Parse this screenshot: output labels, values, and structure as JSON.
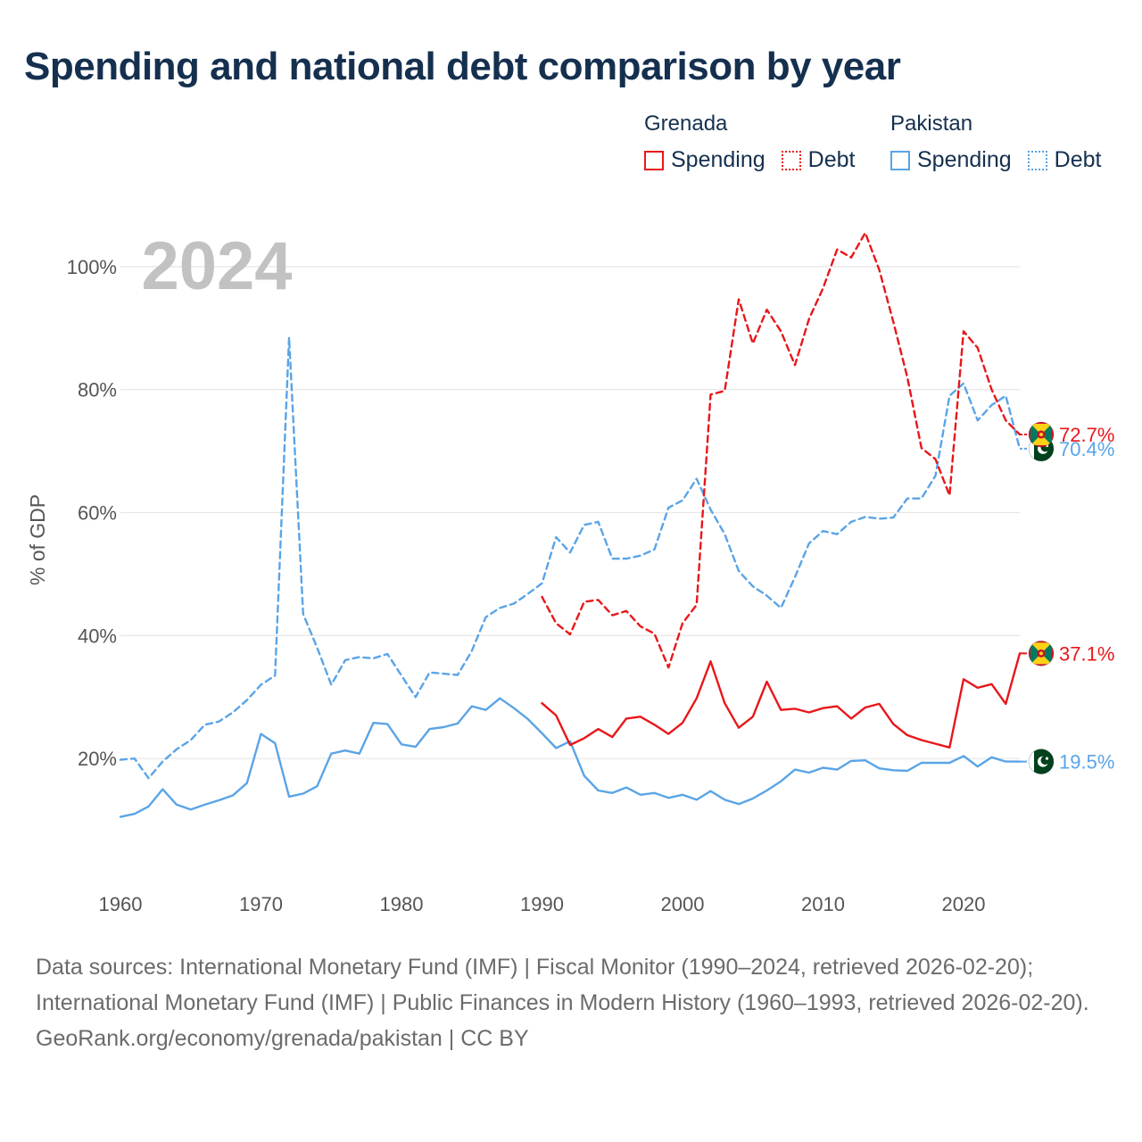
{
  "title": "Spending and national debt comparison by year",
  "legend": {
    "groups": [
      {
        "country": "Grenada",
        "color": "#e8171a",
        "items": [
          {
            "label": "Spending",
            "style": "solid"
          },
          {
            "label": "Debt",
            "style": "dotted"
          }
        ]
      },
      {
        "country": "Pakistan",
        "color": "#5aa4e6",
        "items": [
          {
            "label": "Spending",
            "style": "solid"
          },
          {
            "label": "Debt",
            "style": "dotted"
          }
        ]
      }
    ]
  },
  "chart_data": {
    "type": "line",
    "year_label": "2024",
    "ylabel": "% of GDP",
    "xlim": [
      1960,
      2024
    ],
    "ylim": [
      0,
      110
    ],
    "xticks": [
      1960,
      1970,
      1980,
      1990,
      2000,
      2010,
      2020
    ],
    "yticks": [
      20,
      40,
      60,
      80,
      100
    ],
    "ytick_labels": [
      "20%",
      "40%",
      "60%",
      "80%",
      "100%"
    ],
    "series": [
      {
        "name": "Pakistan Debt",
        "country": "Pakistan",
        "kind": "debt",
        "color": "#5aa4e6",
        "dashed": true,
        "end_label": "70.4%",
        "end_value": 70.4,
        "flag": "pakistan-flag",
        "points": [
          [
            1960,
            19.8
          ],
          [
            1961,
            20.0
          ],
          [
            1962,
            16.8
          ],
          [
            1963,
            19.5
          ],
          [
            1964,
            21.5
          ],
          [
            1965,
            23.0
          ],
          [
            1966,
            25.5
          ],
          [
            1967,
            26.0
          ],
          [
            1968,
            27.5
          ],
          [
            1969,
            29.5
          ],
          [
            1970,
            32.0
          ],
          [
            1971,
            33.5
          ],
          [
            1972,
            88.5
          ],
          [
            1973,
            43.5
          ],
          [
            1974,
            38.0
          ],
          [
            1975,
            32.0
          ],
          [
            1976,
            36.0
          ],
          [
            1977,
            36.5
          ],
          [
            1978,
            36.3
          ],
          [
            1979,
            37.0
          ],
          [
            1980,
            33.5
          ],
          [
            1981,
            30.0
          ],
          [
            1982,
            34.0
          ],
          [
            1983,
            33.8
          ],
          [
            1984,
            33.6
          ],
          [
            1985,
            37.5
          ],
          [
            1986,
            43.0
          ],
          [
            1987,
            44.5
          ],
          [
            1988,
            45.2
          ],
          [
            1989,
            46.8
          ],
          [
            1990,
            48.5
          ],
          [
            1991,
            56.0
          ],
          [
            1992,
            53.5
          ],
          [
            1993,
            58.0
          ],
          [
            1994,
            58.5
          ],
          [
            1995,
            52.5
          ],
          [
            1996,
            52.5
          ],
          [
            1997,
            53.0
          ],
          [
            1998,
            54.0
          ],
          [
            1999,
            60.8
          ],
          [
            2000,
            62.0
          ],
          [
            2001,
            65.5
          ],
          [
            2002,
            60.5
          ],
          [
            2003,
            56.5
          ],
          [
            2004,
            50.5
          ],
          [
            2005,
            48.0
          ],
          [
            2006,
            46.5
          ],
          [
            2007,
            44.5
          ],
          [
            2008,
            49.5
          ],
          [
            2009,
            55.0
          ],
          [
            2010,
            57.0
          ],
          [
            2011,
            56.5
          ],
          [
            2012,
            58.5
          ],
          [
            2013,
            59.3
          ],
          [
            2014,
            59.0
          ],
          [
            2015,
            59.2
          ],
          [
            2016,
            62.3
          ],
          [
            2017,
            62.3
          ],
          [
            2018,
            66.0
          ],
          [
            2019,
            79.0
          ],
          [
            2020,
            81.0
          ],
          [
            2021,
            75.0
          ],
          [
            2022,
            77.5
          ],
          [
            2023,
            79.0
          ],
          [
            2024,
            70.4
          ]
        ]
      },
      {
        "name": "Pakistan Spending",
        "country": "Pakistan",
        "kind": "spending",
        "color": "#5aa4e6",
        "dashed": false,
        "end_label": "19.5%",
        "end_value": 19.5,
        "flag": "pakistan-flag",
        "points": [
          [
            1960,
            10.5
          ],
          [
            1961,
            11.0
          ],
          [
            1962,
            12.2
          ],
          [
            1963,
            15.0
          ],
          [
            1964,
            12.5
          ],
          [
            1965,
            11.7
          ],
          [
            1966,
            12.5
          ],
          [
            1967,
            13.2
          ],
          [
            1968,
            14.0
          ],
          [
            1969,
            16.0
          ],
          [
            1970,
            24.0
          ],
          [
            1971,
            22.5
          ],
          [
            1972,
            13.8
          ],
          [
            1973,
            14.3
          ],
          [
            1974,
            15.5
          ],
          [
            1975,
            20.8
          ],
          [
            1976,
            21.3
          ],
          [
            1977,
            20.8
          ],
          [
            1978,
            25.8
          ],
          [
            1979,
            25.6
          ],
          [
            1980,
            22.3
          ],
          [
            1981,
            21.9
          ],
          [
            1982,
            24.8
          ],
          [
            1983,
            25.1
          ],
          [
            1984,
            25.7
          ],
          [
            1985,
            28.5
          ],
          [
            1986,
            27.9
          ],
          [
            1987,
            29.8
          ],
          [
            1988,
            28.2
          ],
          [
            1989,
            26.4
          ],
          [
            1990,
            24.1
          ],
          [
            1991,
            21.7
          ],
          [
            1992,
            22.8
          ],
          [
            1993,
            17.2
          ],
          [
            1994,
            14.8
          ],
          [
            1995,
            14.4
          ],
          [
            1996,
            15.3
          ],
          [
            1997,
            14.1
          ],
          [
            1998,
            14.4
          ],
          [
            1999,
            13.6
          ],
          [
            2000,
            14.1
          ],
          [
            2001,
            13.3
          ],
          [
            2002,
            14.7
          ],
          [
            2003,
            13.3
          ],
          [
            2004,
            12.6
          ],
          [
            2005,
            13.5
          ],
          [
            2006,
            14.8
          ],
          [
            2007,
            16.3
          ],
          [
            2008,
            18.2
          ],
          [
            2009,
            17.7
          ],
          [
            2010,
            18.5
          ],
          [
            2011,
            18.2
          ],
          [
            2012,
            19.6
          ],
          [
            2013,
            19.7
          ],
          [
            2014,
            18.4
          ],
          [
            2015,
            18.1
          ],
          [
            2016,
            18.0
          ],
          [
            2017,
            19.3
          ],
          [
            2018,
            19.3
          ],
          [
            2019,
            19.3
          ],
          [
            2020,
            20.4
          ],
          [
            2021,
            18.7
          ],
          [
            2022,
            20.2
          ],
          [
            2023,
            19.5
          ],
          [
            2024,
            19.5
          ]
        ]
      },
      {
        "name": "Grenada Debt",
        "country": "Grenada",
        "kind": "debt",
        "color": "#e8171a",
        "dashed": true,
        "end_label": "72.7%",
        "end_value": 72.7,
        "flag": "grenada-flag",
        "points": [
          [
            1990,
            46.3
          ],
          [
            1991,
            42.0
          ],
          [
            1992,
            40.2
          ],
          [
            1993,
            45.5
          ],
          [
            1994,
            45.8
          ],
          [
            1995,
            43.3
          ],
          [
            1996,
            44.0
          ],
          [
            1997,
            41.5
          ],
          [
            1998,
            40.3
          ],
          [
            1999,
            34.8
          ],
          [
            2000,
            42.0
          ],
          [
            2001,
            45.0
          ],
          [
            2002,
            79.2
          ],
          [
            2003,
            79.8
          ],
          [
            2004,
            94.7
          ],
          [
            2005,
            87.5
          ],
          [
            2006,
            93.0
          ],
          [
            2007,
            89.5
          ],
          [
            2008,
            84.0
          ],
          [
            2009,
            91.5
          ],
          [
            2010,
            96.5
          ],
          [
            2011,
            102.8
          ],
          [
            2012,
            101.5
          ],
          [
            2013,
            105.5
          ],
          [
            2014,
            99.5
          ],
          [
            2015,
            91.0
          ],
          [
            2016,
            82.0
          ],
          [
            2017,
            70.5
          ],
          [
            2018,
            68.7
          ],
          [
            2019,
            62.8
          ],
          [
            2020,
            89.5
          ],
          [
            2021,
            86.8
          ],
          [
            2022,
            80.0
          ],
          [
            2023,
            75.0
          ],
          [
            2024,
            72.7
          ]
        ]
      },
      {
        "name": "Grenada Spending",
        "country": "Grenada",
        "kind": "spending",
        "color": "#e8171a",
        "dashed": false,
        "end_label": "37.1%",
        "end_value": 37.1,
        "flag": "grenada-flag",
        "points": [
          [
            1990,
            29.0
          ],
          [
            1991,
            27.0
          ],
          [
            1992,
            22.2
          ],
          [
            1993,
            23.3
          ],
          [
            1994,
            24.8
          ],
          [
            1995,
            23.5
          ],
          [
            1996,
            26.5
          ],
          [
            1997,
            26.8
          ],
          [
            1998,
            25.5
          ],
          [
            1999,
            24.0
          ],
          [
            2000,
            25.8
          ],
          [
            2001,
            29.8
          ],
          [
            2002,
            35.8
          ],
          [
            2003,
            29.0
          ],
          [
            2004,
            25.0
          ],
          [
            2005,
            26.8
          ],
          [
            2006,
            32.5
          ],
          [
            2007,
            27.9
          ],
          [
            2008,
            28.1
          ],
          [
            2009,
            27.5
          ],
          [
            2010,
            28.2
          ],
          [
            2011,
            28.5
          ],
          [
            2012,
            26.5
          ],
          [
            2013,
            28.3
          ],
          [
            2014,
            28.9
          ],
          [
            2015,
            25.6
          ],
          [
            2016,
            23.8
          ],
          [
            2017,
            23.0
          ],
          [
            2018,
            22.4
          ],
          [
            2019,
            21.8
          ],
          [
            2020,
            32.9
          ],
          [
            2021,
            31.5
          ],
          [
            2022,
            32.1
          ],
          [
            2023,
            28.9
          ],
          [
            2024,
            37.1
          ]
        ]
      }
    ]
  },
  "footer": {
    "sources": "Data sources: International Monetary Fund (IMF) | Fiscal Monitor (1990–2024, retrieved 2026-02-20); International Monetary Fund (IMF) | Public Finances in Modern History (1960–1993, retrieved 2026-02-20).",
    "credit": "GeoRank.org/economy/grenada/pakistan | CC BY"
  }
}
